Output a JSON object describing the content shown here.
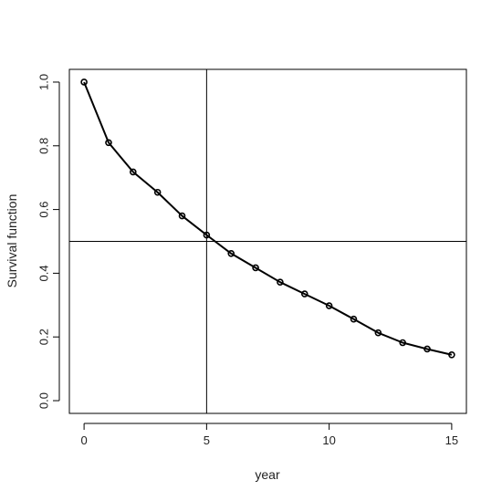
{
  "chart_data": {
    "type": "line",
    "xlabel": "year",
    "ylabel": "Survival function",
    "xlim": [
      -0.6,
      15.6
    ],
    "ylim": [
      -0.04,
      1.04
    ],
    "x_ticks": [
      0,
      5,
      10,
      15
    ],
    "x_tick_labels": [
      "0",
      "5",
      "10",
      "15"
    ],
    "y_ticks": [
      0.0,
      0.2,
      0.4,
      0.6,
      0.8,
      1.0
    ],
    "y_tick_labels": [
      "0.0",
      "0.2",
      "0.4",
      "0.6",
      "0.8",
      "1.0"
    ],
    "grid": false,
    "legend": "none",
    "reference_lines": {
      "vertical_x": 5,
      "horizontal_y": 0.5
    },
    "series": [
      {
        "x": [
          0,
          1,
          2,
          3,
          4,
          5,
          6,
          7,
          8,
          9,
          10,
          11,
          12,
          13,
          14,
          15
        ],
        "values": [
          1.0,
          0.81,
          0.718,
          0.654,
          0.58,
          0.52,
          0.462,
          0.417,
          0.372,
          0.335,
          0.298,
          0.256,
          0.213,
          0.182,
          0.162,
          0.144
        ],
        "markers": "open-circle",
        "color": "#000000"
      }
    ]
  }
}
